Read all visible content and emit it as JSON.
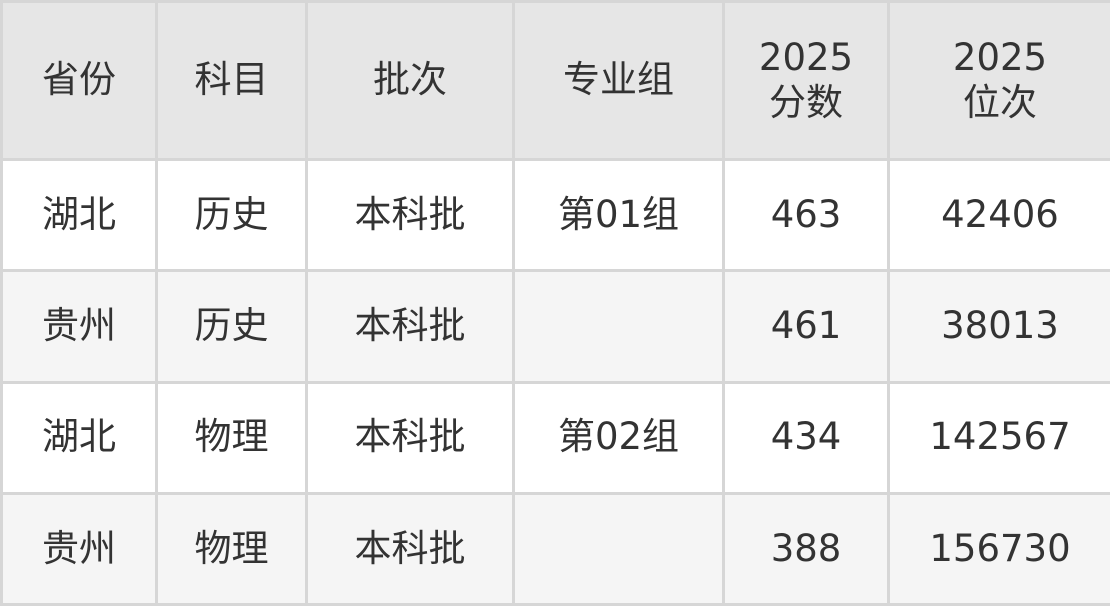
{
  "headers": [
    "省份",
    "科目",
    "批次",
    "专业组",
    "2025\n分数",
    "2025\n位次"
  ],
  "header_lines": [
    [
      "省份"
    ],
    [
      "科目"
    ],
    [
      "批次"
    ],
    [
      "专业组"
    ],
    [
      "2025",
      "分数"
    ],
    [
      "2025",
      "位次"
    ]
  ],
  "rows": [
    [
      "湖北",
      "历史",
      "本科批",
      "第01组",
      "463",
      "42406"
    ],
    [
      "贵州",
      "历史",
      "本科批",
      "",
      "461",
      "38013"
    ],
    [
      "湖北",
      "物理",
      "本科批",
      "第02组",
      "434",
      "142567"
    ],
    [
      "贵州",
      "物理",
      "本科批",
      "",
      "388",
      "156730"
    ]
  ],
  "colors": {
    "header_bg": "#e6e6e6",
    "border": "#d6d6d6",
    "stripe": "#f5f5f5",
    "text": "#333333"
  }
}
